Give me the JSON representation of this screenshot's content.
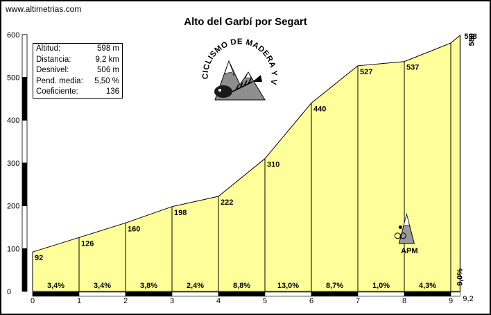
{
  "site": "www.altimetrias.com",
  "title": "Alto del Garbí por Segart",
  "stats": [
    {
      "label": "Altitud:",
      "value": "598 m"
    },
    {
      "label": "Distancia:",
      "value": "9,2 km"
    },
    {
      "label": "Desnivel:",
      "value": "506 m"
    },
    {
      "label": "Pend. media:",
      "value": "5,50 %"
    },
    {
      "label": "Coeficiente:",
      "value": "136"
    }
  ],
  "logo_text": "CICLISMO DE MADERA Y VIENTO",
  "apm_label": "APM",
  "colors": {
    "fill": "#ffff99",
    "line": "#000000"
  },
  "chart_data": {
    "type": "area",
    "xlim": [
      0,
      9.2
    ],
    "ylim": [
      0,
      600
    ],
    "x_ticks": [
      "0",
      "1",
      "2",
      "3",
      "4",
      "5",
      "6",
      "7",
      "8",
      "9"
    ],
    "y_ticks": [
      "0",
      "100",
      "200",
      "300",
      "400",
      "500",
      "600"
    ],
    "x_end_label": "9,2",
    "points": [
      {
        "x": 0,
        "y": 92,
        "label": "92"
      },
      {
        "x": 1,
        "y": 126,
        "label": "126"
      },
      {
        "x": 2,
        "y": 160,
        "label": "160"
      },
      {
        "x": 3,
        "y": 198,
        "label": "198"
      },
      {
        "x": 4,
        "y": 222,
        "label": "222"
      },
      {
        "x": 5,
        "y": 310,
        "label": "310"
      },
      {
        "x": 6,
        "y": 440,
        "label": "440"
      },
      {
        "x": 7,
        "y": 527,
        "label": "527"
      },
      {
        "x": 8,
        "y": 537,
        "label": "537"
      },
      {
        "x": 9,
        "y": 580,
        "label": "580"
      },
      {
        "x": 9.2,
        "y": 598,
        "label": "598"
      }
    ],
    "gradients": [
      "3,4%",
      "3,4%",
      "3,8%",
      "2,4%",
      "8,8%",
      "13,0%",
      "8,7%",
      "1,0%",
      "4,3%",
      "9,0%"
    ],
    "apm_at_km": 8.05
  }
}
